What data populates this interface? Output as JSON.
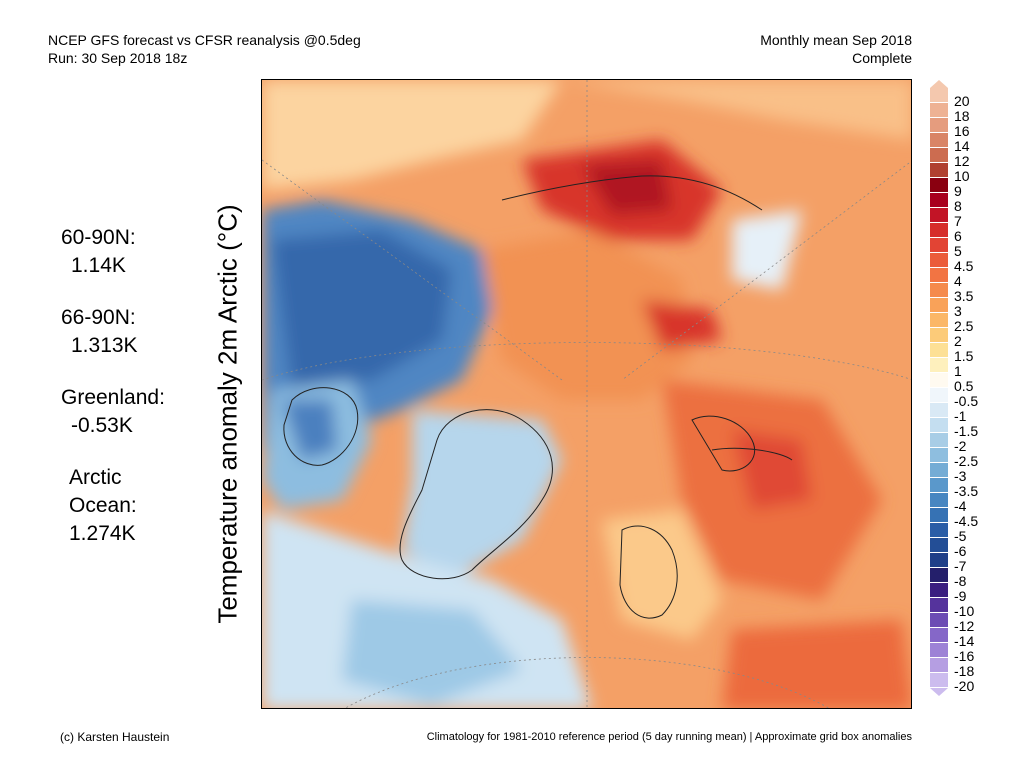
{
  "header": {
    "title_line1": "NCEP GFS forecast vs CFSR reanalysis @0.5deg",
    "title_line2": "Run: 30 Sep 2018 18z",
    "right_line1": "Monthly mean Sep 2018",
    "right_line2": "Complete"
  },
  "y_axis_label": "Temperature anomaly 2m Arctic (°C)",
  "stats": [
    {
      "label": "60-90N:",
      "value": "1.14K"
    },
    {
      "label": "66-90N:",
      "value": "1.313K"
    },
    {
      "label": "Greenland:",
      "value": "-0.53K"
    },
    {
      "label_lines": [
        "Arctic",
        "Ocean:"
      ],
      "value": "1.274K"
    }
  ],
  "colorbar": {
    "labels": [
      "20",
      "18",
      "16",
      "14",
      "12",
      "10",
      "9",
      "8",
      "7",
      "6",
      "5",
      "4.5",
      "4",
      "3.5",
      "3",
      "2.5",
      "2",
      "1.5",
      "1",
      "0.5",
      "-0.5",
      "-1",
      "-1.5",
      "-2",
      "-2.5",
      "-3",
      "-3.5",
      "-4",
      "-4.5",
      "-5",
      "-6",
      "-7",
      "-8",
      "-9",
      "-10",
      "-12",
      "-14",
      "-16",
      "-18",
      "-20"
    ],
    "colors": [
      "#f4c8ae",
      "#eeb294",
      "#e59c7e",
      "#d98466",
      "#cc6c50",
      "#b04030",
      "#8a0010",
      "#a8001e",
      "#c21426",
      "#d62d2a",
      "#e24434",
      "#eb5c3a",
      "#f27443",
      "#f58a4c",
      "#f9a259",
      "#fbb767",
      "#fccb79",
      "#fde095",
      "#fef0bd",
      "#fffaf0",
      "#f0f6fb",
      "#d9e9f5",
      "#c4def0",
      "#a8cde6",
      "#8ebedf",
      "#74acd5",
      "#5a98cb",
      "#4786c1",
      "#3672b4",
      "#2a5da6",
      "#234e96",
      "#1f3f88",
      "#241f6b",
      "#3a1e80",
      "#55339c",
      "#6c4cb4",
      "#8567c8",
      "#9d82d6",
      "#b59ee2",
      "#ccbcee"
    ]
  },
  "footer": {
    "credit": "(c) Karsten Haustein",
    "note": "Climatology for 1981-2010 reference period (5 day running mean) | Approximate grid box anomalies"
  }
}
